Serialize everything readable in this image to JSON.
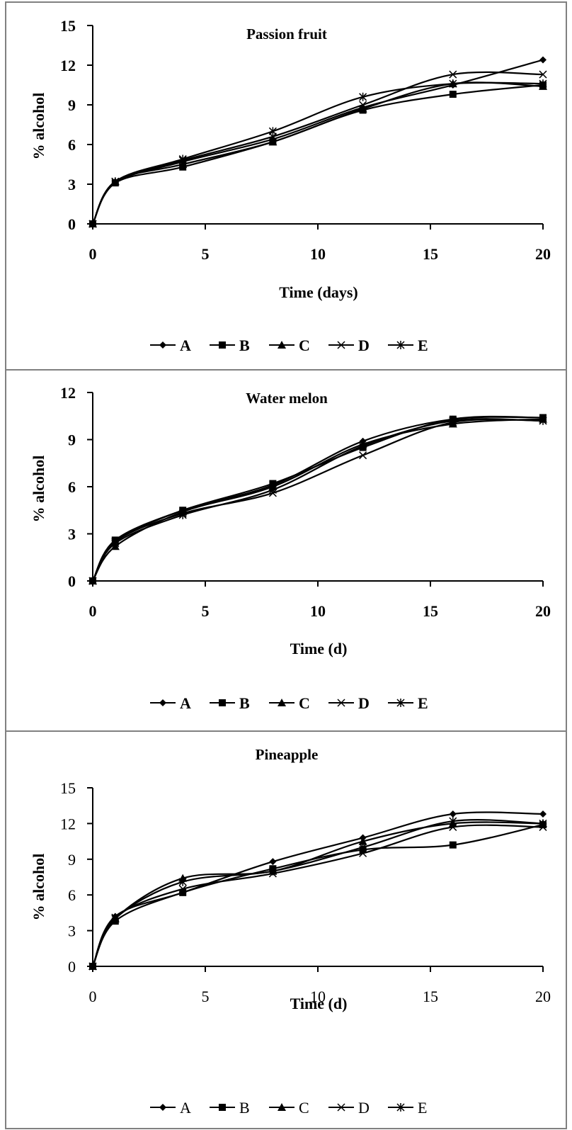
{
  "chart_data": [
    {
      "type": "line",
      "title": "Passion fruit",
      "xlabel": "Time (days)",
      "ylabel": "% alcohol",
      "xlim": [
        0,
        20
      ],
      "ylim": [
        0,
        15
      ],
      "xticks": [
        "0",
        "5",
        "10",
        "15",
        "20"
      ],
      "yticks": [
        "0",
        "3",
        "6",
        "9",
        "12",
        "15"
      ],
      "x": [
        0,
        1,
        4,
        8,
        12,
        16,
        20
      ],
      "series": [
        {
          "name": "A",
          "marker": "diamond",
          "values": [
            0,
            3.1,
            4.7,
            6.4,
            8.8,
            10.5,
            12.4
          ]
        },
        {
          "name": "B",
          "marker": "square",
          "values": [
            0,
            3.1,
            4.3,
            6.2,
            8.6,
            9.8,
            10.5
          ]
        },
        {
          "name": "C",
          "marker": "triangle",
          "values": [
            0,
            3.2,
            4.5,
            6.2,
            8.7,
            10.6,
            10.4
          ]
        },
        {
          "name": "D",
          "marker": "x",
          "values": [
            0,
            3.2,
            4.8,
            6.6,
            9.0,
            11.3,
            11.3
          ]
        },
        {
          "name": "E",
          "marker": "star",
          "values": [
            0,
            3.2,
            4.9,
            7.0,
            9.6,
            10.6,
            10.6
          ]
        }
      ],
      "grid": false,
      "legend": "bottom"
    },
    {
      "type": "line",
      "title": "Water melon",
      "xlabel": "Time (d)",
      "ylabel": "% alcohol",
      "xlim": [
        0,
        20
      ],
      "ylim": [
        0,
        12
      ],
      "xticks": [
        "0",
        "5",
        "10",
        "15",
        "20"
      ],
      "yticks": [
        "0",
        "3",
        "6",
        "9",
        "12"
      ],
      "x": [
        0,
        1,
        4,
        8,
        12,
        16,
        20
      ],
      "series": [
        {
          "name": "A",
          "marker": "diamond",
          "values": [
            0,
            2.5,
            4.5,
            6.1,
            8.9,
            10.3,
            10.4
          ]
        },
        {
          "name": "B",
          "marker": "square",
          "values": [
            0,
            2.6,
            4.5,
            6.2,
            8.5,
            10.3,
            10.4
          ]
        },
        {
          "name": "C",
          "marker": "triangle",
          "values": [
            0,
            2.2,
            4.4,
            6.0,
            8.7,
            10.0,
            10.3
          ]
        },
        {
          "name": "D",
          "marker": "x",
          "values": [
            0,
            2.5,
            4.3,
            5.6,
            8.0,
            10.1,
            10.2
          ]
        },
        {
          "name": "E",
          "marker": "star",
          "values": [
            0,
            2.4,
            4.2,
            5.8,
            8.6,
            10.2,
            10.2
          ]
        }
      ],
      "grid": false,
      "legend": "bottom"
    },
    {
      "type": "line",
      "title": "Pineapple",
      "xlabel": "Time (d)",
      "ylabel": "% alcohol",
      "xlim": [
        0,
        20
      ],
      "ylim": [
        0,
        15
      ],
      "xticks": [
        "0",
        "5",
        "10",
        "15",
        "20"
      ],
      "yticks": [
        "0",
        "3",
        "6",
        "9",
        "12",
        "15"
      ],
      "x": [
        0,
        1,
        4,
        8,
        12,
        16,
        20
      ],
      "series": [
        {
          "name": "A",
          "marker": "diamond",
          "values": [
            0,
            4.2,
            6.2,
            8.8,
            10.8,
            12.8,
            12.8
          ]
        },
        {
          "name": "B",
          "marker": "square",
          "values": [
            0,
            3.8,
            6.2,
            8.2,
            9.8,
            10.2,
            11.9
          ]
        },
        {
          "name": "C",
          "marker": "triangle",
          "values": [
            0,
            4.0,
            7.4,
            8.0,
            10.5,
            12.0,
            12.0
          ]
        },
        {
          "name": "D",
          "marker": "x",
          "values": [
            0,
            4.1,
            6.5,
            7.8,
            9.5,
            11.7,
            11.7
          ]
        },
        {
          "name": "E",
          "marker": "star",
          "values": [
            0,
            4.0,
            7.1,
            8.0,
            10.0,
            12.2,
            12.0
          ]
        }
      ],
      "grid": false,
      "legend": "bottom"
    }
  ]
}
